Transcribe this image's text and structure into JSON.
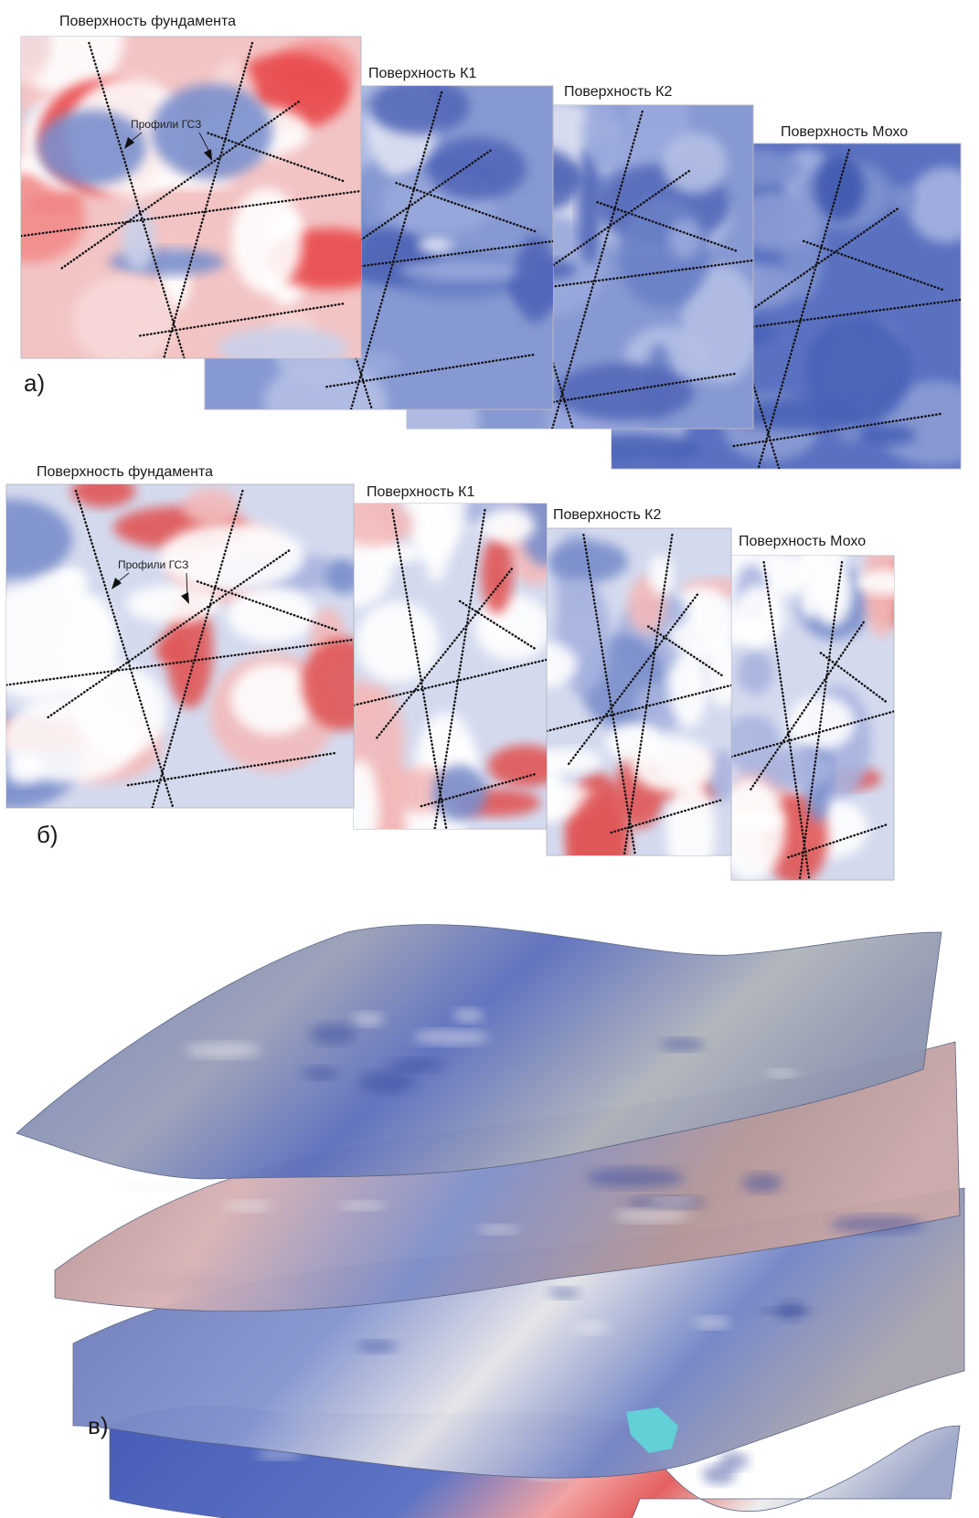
{
  "panels": [
    {
      "label": "а)",
      "note": "Профили ГСЗ",
      "maps": [
        "Поверхность фундамента",
        "Поверхность К1",
        "Поверхность К2",
        "Поверхность Мохо"
      ]
    },
    {
      "label": "б)",
      "note": "Профили ГСЗ",
      "maps": [
        "Поверхность фундамента",
        "Поверхность К1",
        "Поверхность К2",
        "Поверхность Мохо"
      ]
    },
    {
      "label": "в)"
    }
  ]
}
